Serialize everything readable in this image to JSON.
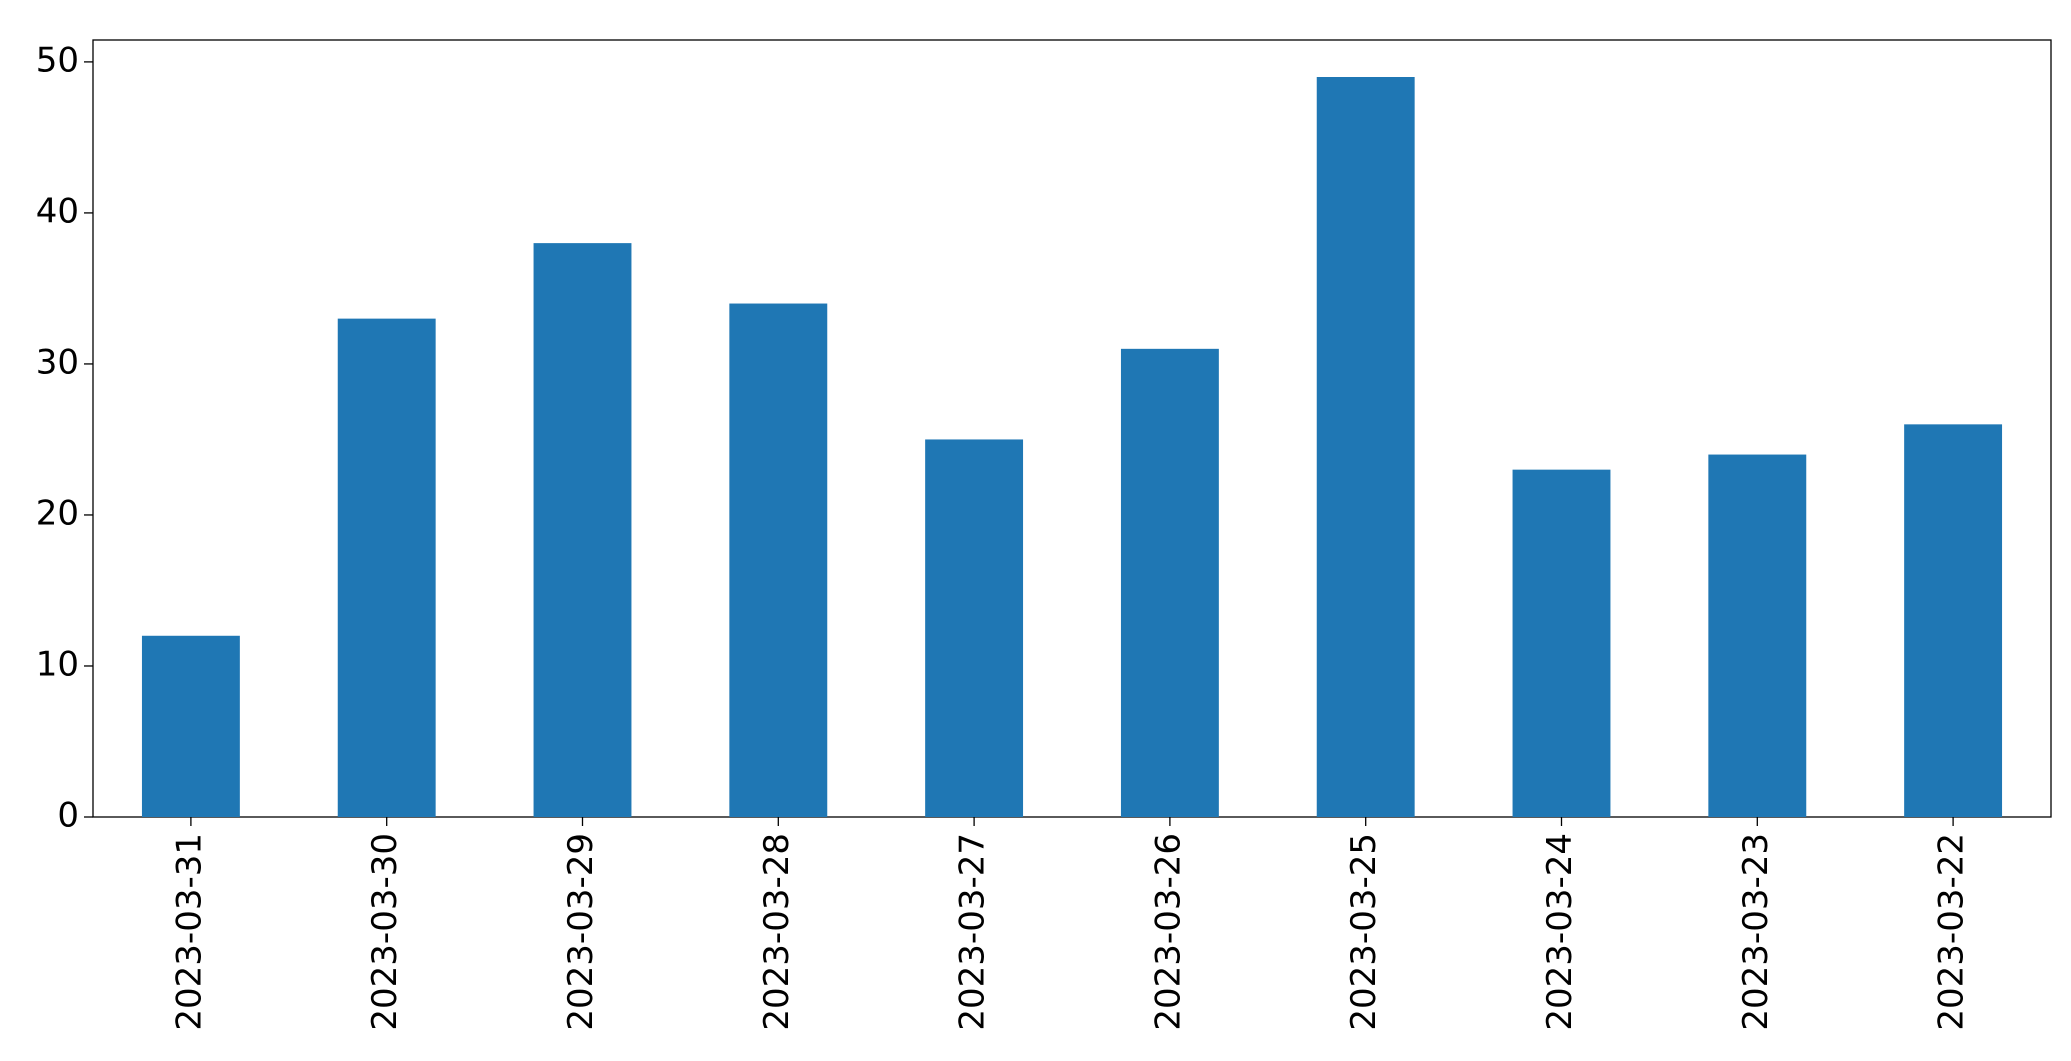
{
  "chart_data": {
    "type": "bar",
    "categories": [
      "2023-03-31",
      "2023-03-30",
      "2023-03-29",
      "2023-03-28",
      "2023-03-27",
      "2023-03-26",
      "2023-03-25",
      "2023-03-24",
      "2023-03-23",
      "2023-03-22"
    ],
    "values": [
      12,
      33,
      38,
      34,
      25,
      31,
      49,
      23,
      24,
      26
    ],
    "color": "#1f77b4",
    "ylim": [
      0,
      51.45
    ],
    "yticks": [
      0,
      10,
      20,
      30,
      40,
      50
    ],
    "grid": false
  }
}
